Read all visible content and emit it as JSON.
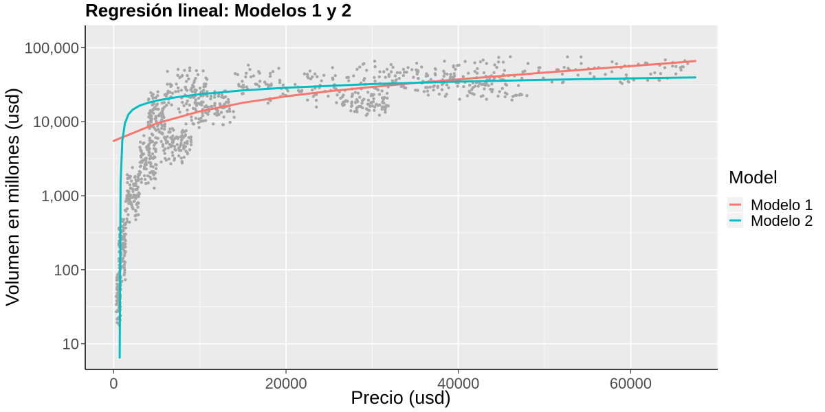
{
  "chart_data": {
    "type": "scatter",
    "title": "Regresión lineal: Modelos 1 y 2",
    "xlabel": "Precio (usd)",
    "ylabel": "Volumen en millones (usd)",
    "xlim": [
      -3300,
      70100
    ],
    "ylim": [
      4.5,
      200000
    ],
    "y_scale": "log10",
    "x_ticks": [
      0,
      20000,
      40000,
      60000
    ],
    "x_tick_labels": [
      "0",
      "20000",
      "40000",
      "60000"
    ],
    "y_ticks": [
      10,
      100,
      1000,
      10000,
      100000
    ],
    "y_tick_labels": [
      "10",
      "100",
      "1,000",
      "10,000",
      "100,000"
    ],
    "grid": true,
    "legend_title": "Model",
    "legend_position": "right",
    "points_color": "#a6a6a6",
    "scatter_clusters": [
      {
        "x": [
          300,
          800
        ],
        "y": [
          15,
          120
        ]
      },
      {
        "x": [
          600,
          1400
        ],
        "y": [
          60,
          700
        ]
      },
      {
        "x": [
          1400,
          3000
        ],
        "y": [
          400,
          2500
        ]
      },
      {
        "x": [
          3000,
          5000
        ],
        "y": [
          1200,
          8000
        ]
      },
      {
        "x": [
          4000,
          6000
        ],
        "y": [
          5000,
          30000
        ]
      },
      {
        "x": [
          5500,
          9000
        ],
        "y": [
          2500,
          10000
        ]
      },
      {
        "x": [
          6000,
          11000
        ],
        "y": [
          12000,
          60000
        ]
      },
      {
        "x": [
          9000,
          14000
        ],
        "y": [
          8000,
          30000
        ]
      },
      {
        "x": [
          14000,
          26000
        ],
        "y": [
          15000,
          60000
        ]
      },
      {
        "x": [
          26000,
          32000
        ],
        "y": [
          11000,
          30000
        ]
      },
      {
        "x": [
          27000,
          40000
        ],
        "y": [
          25000,
          70000
        ]
      },
      {
        "x": [
          36000,
          48000
        ],
        "y": [
          18000,
          50000
        ]
      },
      {
        "x": [
          40000,
          67000
        ],
        "y": [
          30000,
          80000
        ]
      }
    ],
    "series": [
      {
        "name": "Modelo 1",
        "color": "#f8766d",
        "x": [
          0,
          5000,
          10000,
          15000,
          20000,
          25000,
          30000,
          35000,
          40000,
          45000,
          50000,
          55000,
          60000,
          65000,
          67500
        ],
        "y": [
          5500,
          9500,
          13800,
          18000,
          22000,
          25800,
          29500,
          33300,
          37300,
          41500,
          46000,
          51000,
          56500,
          62500,
          66000
        ]
      },
      {
        "name": "Modelo 2",
        "color": "#00bfc4",
        "x": [
          700,
          800,
          1000,
          1300,
          1700,
          2200,
          3000,
          4000,
          5000,
          7000,
          10000,
          15000,
          20000,
          30000,
          40000,
          50000,
          60000,
          67500
        ],
        "y": [
          6.5,
          1500,
          5500,
          9500,
          12500,
          14500,
          16500,
          18000,
          19300,
          21200,
          23500,
          26500,
          28800,
          32300,
          34800,
          36800,
          38500,
          39700
        ]
      }
    ]
  }
}
